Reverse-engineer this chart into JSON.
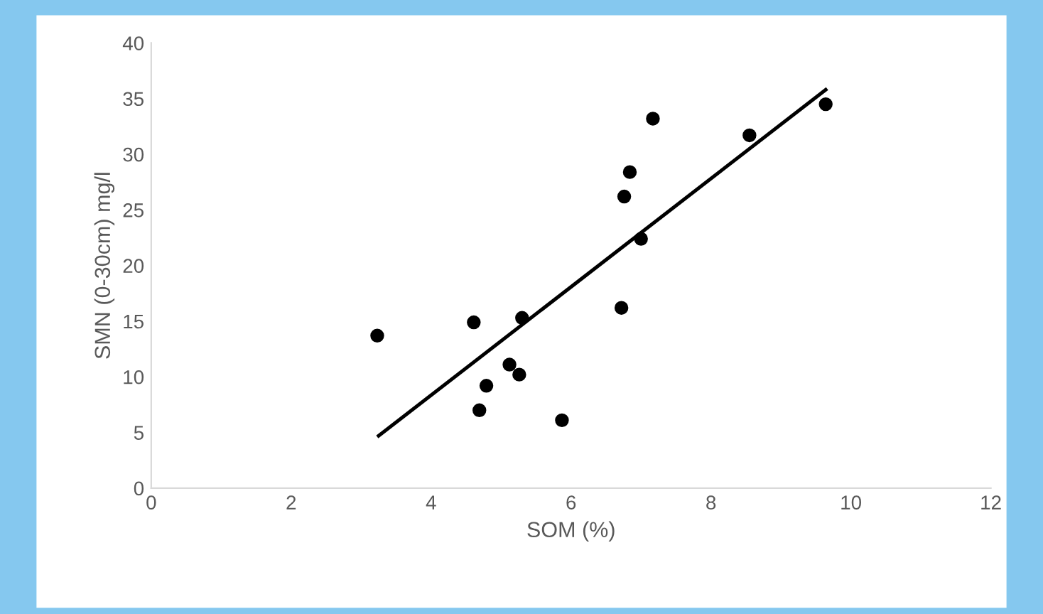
{
  "chart_data": {
    "type": "scatter",
    "xlabel": "SOM (%)",
    "ylabel": "SMN (0-30cm) mg/l",
    "xlim": [
      0,
      12
    ],
    "xticks": [
      0,
      2,
      4,
      6,
      8,
      10,
      12
    ],
    "ylim": [
      0,
      40
    ],
    "yticks": [
      0,
      5,
      10,
      15,
      20,
      25,
      30,
      35,
      40
    ],
    "grid": false,
    "legend": false,
    "series": [
      {
        "marker": "circle",
        "color": "#000000",
        "x": [
          3.23,
          4.61,
          5.3,
          4.69,
          4.79,
          5.12,
          5.26,
          5.87,
          6.72,
          6.76,
          6.84,
          7.0,
          7.17,
          8.55,
          9.64
        ],
        "values": [
          13.7,
          14.9,
          15.3,
          7.0,
          9.2,
          11.1,
          10.2,
          6.1,
          16.2,
          26.2,
          28.4,
          22.4,
          33.2,
          31.7,
          34.5
        ]
      },
      {
        "type": "line",
        "color": "#000000",
        "x": [
          3.25,
          9.64
        ],
        "values": [
          4.7,
          35.8
        ]
      }
    ]
  }
}
